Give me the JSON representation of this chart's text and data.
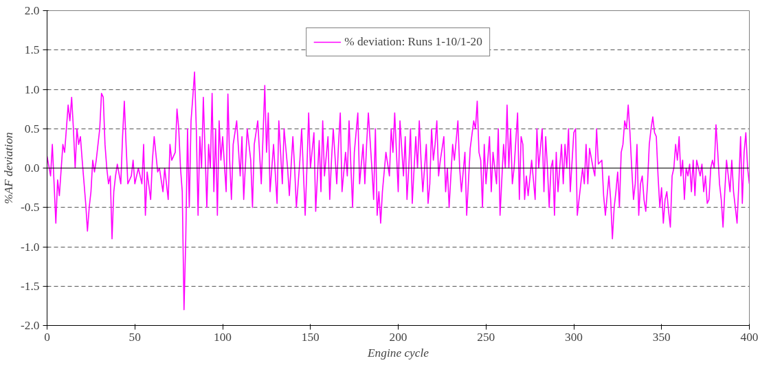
{
  "chart_data": {
    "type": "line",
    "xlabel": "Engine cycle",
    "ylabel": "%AF deviation",
    "xlim": [
      0,
      400
    ],
    "xticks": [
      0,
      50,
      100,
      150,
      200,
      250,
      300,
      350,
      400
    ],
    "ylim": [
      -2,
      2
    ],
    "yticks": [
      {
        "value": -2,
        "label": "-2.0"
      },
      {
        "value": -1.5,
        "label": "-1.5"
      },
      {
        "value": -1,
        "label": "-1.0"
      },
      {
        "value": -0.5,
        "label": "-0.5"
      },
      {
        "value": 0,
        "label": "0.0"
      },
      {
        "value": 0.5,
        "label": "0.5"
      },
      {
        "value": 1,
        "label": "1.0"
      },
      {
        "value": 1.5,
        "label": "1.5"
      },
      {
        "value": 2,
        "label": "2.0"
      }
    ],
    "grid": "y",
    "legend": "top",
    "marker": "none",
    "line_style": "solid",
    "ref_lines": [
      {
        "axis": "y",
        "value": 0,
        "color": "#000000",
        "line_style": "solid"
      }
    ],
    "x": [
      0,
      2,
      3,
      5,
      6,
      7,
      9,
      10,
      12,
      13,
      14,
      15,
      16,
      17,
      18,
      19,
      20,
      22,
      23,
      24,
      25,
      26,
      27,
      28,
      30,
      31,
      32,
      33,
      34,
      35,
      36,
      37,
      38,
      39,
      40,
      42,
      43,
      44,
      45,
      46,
      48,
      49,
      50,
      52,
      54,
      55,
      56,
      57,
      59,
      60,
      61,
      63,
      64,
      66,
      67,
      69,
      70,
      71,
      73,
      74,
      75,
      76,
      77,
      78,
      79,
      80,
      81,
      82,
      83,
      84,
      85,
      86,
      87,
      88,
      89,
      90,
      91,
      92,
      93,
      94,
      95,
      96,
      97,
      98,
      99,
      100,
      102,
      103,
      104,
      105,
      106,
      108,
      110,
      111,
      112,
      114,
      116,
      117,
      118,
      120,
      122,
      123,
      124,
      125,
      126,
      127,
      129,
      131,
      132,
      134,
      135,
      137,
      138,
      140,
      141,
      142,
      144,
      145,
      147,
      148,
      149,
      150,
      152,
      153,
      155,
      156,
      157,
      158,
      160,
      161,
      162,
      163,
      165,
      166,
      167,
      168,
      170,
      171,
      172,
      174,
      175,
      177,
      178,
      180,
      181,
      182,
      183,
      185,
      186,
      187,
      188,
      189,
      190,
      191,
      193,
      195,
      196,
      197,
      198,
      199,
      200,
      201,
      203,
      204,
      205,
      206,
      207,
      208,
      210,
      211,
      212,
      213,
      214,
      216,
      217,
      218,
      219,
      220,
      221,
      222,
      223,
      224,
      226,
      227,
      228,
      229,
      231,
      232,
      234,
      235,
      236,
      238,
      239,
      241,
      243,
      244,
      245,
      246,
      247,
      248,
      249,
      250,
      252,
      253,
      254,
      256,
      257,
      258,
      260,
      261,
      262,
      263,
      264,
      265,
      266,
      268,
      269,
      270,
      271,
      272,
      273,
      274,
      276,
      278,
      279,
      280,
      282,
      283,
      284,
      285,
      286,
      287,
      288,
      289,
      290,
      291,
      293,
      294,
      295,
      296,
      297,
      298,
      300,
      301,
      302,
      303,
      305,
      306,
      307,
      308,
      309,
      311,
      312,
      313,
      314,
      316,
      317,
      318,
      320,
      321,
      322,
      323,
      324,
      325,
      326,
      327,
      328,
      329,
      330,
      331,
      332,
      333,
      334,
      335,
      336,
      337,
      338,
      339,
      340,
      341,
      342,
      343,
      344,
      345,
      346,
      347,
      348,
      349,
      350,
      351,
      352,
      353,
      354,
      355,
      356,
      357,
      358,
      359,
      360,
      361,
      362,
      363,
      364,
      365,
      366,
      367,
      368,
      369,
      370,
      371,
      372,
      373,
      374,
      375,
      376,
      377,
      378,
      379,
      380,
      381,
      382,
      383,
      384,
      385,
      386,
      387,
      388,
      389,
      390,
      391,
      392,
      393,
      394,
      395,
      396,
      397,
      398,
      399,
      400
    ],
    "series": [
      {
        "name": "% deviation: Runs 1-10/1-20",
        "color": "#ff00ff",
        "values": [
          0.15,
          -0.1,
          0.3,
          -0.7,
          -0.15,
          -0.35,
          0.3,
          0.2,
          0.8,
          0.6,
          0.9,
          0.5,
          0.0,
          0.5,
          0.3,
          0.4,
          0.1,
          -0.45,
          -0.8,
          -0.5,
          -0.3,
          0.1,
          -0.05,
          0.1,
          0.5,
          0.95,
          0.9,
          0.3,
          0.0,
          -0.2,
          -0.1,
          -0.9,
          -0.3,
          -0.1,
          0.05,
          -0.2,
          0.4,
          0.85,
          0.3,
          -0.2,
          -0.1,
          0.1,
          -0.2,
          0.0,
          -0.2,
          0.3,
          -0.6,
          -0.05,
          -0.4,
          0.1,
          0.4,
          -0.05,
          0.0,
          -0.3,
          0.0,
          -0.4,
          0.3,
          0.1,
          0.2,
          0.75,
          0.5,
          0.0,
          -0.3,
          -1.8,
          -0.9,
          0.5,
          -0.5,
          0.6,
          0.9,
          1.22,
          0.5,
          -0.6,
          0.4,
          0.0,
          0.9,
          0.2,
          -0.5,
          0.3,
          0.0,
          0.95,
          -0.3,
          0.5,
          -0.6,
          0.6,
          0.1,
          0.4,
          -0.3,
          0.94,
          0.1,
          -0.4,
          0.3,
          0.6,
          -0.1,
          0.4,
          -0.4,
          0.5,
          0.1,
          -0.5,
          0.3,
          0.6,
          -0.2,
          0.4,
          1.05,
          0.2,
          0.7,
          -0.3,
          0.3,
          -0.45,
          0.6,
          -0.2,
          0.5,
          0.0,
          -0.35,
          0.4,
          0.0,
          -0.5,
          0.1,
          0.5,
          -0.6,
          0.0,
          0.7,
          0.0,
          0.45,
          -0.55,
          0.35,
          -0.3,
          0.6,
          -0.1,
          0.4,
          -0.4,
          0.1,
          0.5,
          -0.2,
          0.3,
          0.7,
          -0.3,
          0.2,
          -0.1,
          0.6,
          -0.5,
          0.2,
          0.7,
          -0.2,
          0.3,
          -0.2,
          0.3,
          0.7,
          0.0,
          -0.4,
          0.5,
          -0.6,
          -0.3,
          -0.7,
          -0.3,
          0.2,
          -0.1,
          0.5,
          0.2,
          0.7,
          0.2,
          -0.3,
          0.6,
          -0.1,
          0.4,
          -0.4,
          0.0,
          0.5,
          -0.45,
          0.4,
          0.0,
          0.6,
          0.1,
          -0.3,
          0.3,
          -0.45,
          -0.2,
          0.5,
          0.1,
          0.3,
          0.6,
          -0.1,
          0.1,
          0.4,
          -0.3,
          0.0,
          -0.5,
          0.3,
          0.1,
          0.6,
          0.0,
          -0.3,
          0.2,
          -0.6,
          0.25,
          0.6,
          0.5,
          0.85,
          0.2,
          0.1,
          -0.5,
          0.3,
          -0.2,
          0.4,
          -0.3,
          0.2,
          -0.2,
          0.5,
          -0.6,
          0.3,
          0.0,
          0.8,
          0.0,
          0.5,
          -0.2,
          0.0,
          0.7,
          -0.4,
          0.4,
          0.3,
          -0.4,
          -0.1,
          -0.35,
          0.1,
          -0.4,
          0.5,
          0.0,
          0.5,
          -0.3,
          0.4,
          0.0,
          -0.5,
          0.0,
          0.1,
          -0.6,
          0.2,
          -0.3,
          0.3,
          -0.2,
          0.3,
          0.0,
          0.5,
          -0.3,
          0.45,
          0.5,
          -0.6,
          -0.4,
          0.0,
          -0.2,
          0.3,
          -0.2,
          0.25,
          0.0,
          -0.1,
          0.5,
          0.05,
          0.1,
          -0.35,
          -0.6,
          -0.1,
          -0.4,
          -0.9,
          -0.5,
          -0.3,
          -0.05,
          -0.5,
          0.2,
          0.3,
          0.6,
          0.5,
          0.8,
          0.45,
          0.0,
          -0.4,
          -0.2,
          0.3,
          -0.6,
          -0.2,
          -0.1,
          -0.4,
          -0.55,
          -0.2,
          0.3,
          0.5,
          0.65,
          0.45,
          0.4,
          -0.1,
          -0.5,
          -0.25,
          -0.7,
          -0.4,
          -0.3,
          -0.55,
          -0.75,
          -0.1,
          0.0,
          0.3,
          0.1,
          0.4,
          -0.1,
          0.1,
          -0.4,
          0.0,
          -0.1,
          0.05,
          -0.3,
          0.1,
          -0.35,
          0.1,
          0.0,
          -0.1,
          0.05,
          -0.3,
          -0.1,
          -0.45,
          -0.4,
          0.0,
          0.1,
          0.0,
          0.55,
          0.2,
          -0.2,
          -0.4,
          -0.75,
          -0.3,
          0.1,
          -0.1,
          -0.3,
          0.1,
          -0.3,
          -0.5,
          -0.7,
          -0.2,
          0.4,
          -0.45,
          0.2,
          0.45,
          0.0,
          -0.2
        ]
      }
    ]
  }
}
